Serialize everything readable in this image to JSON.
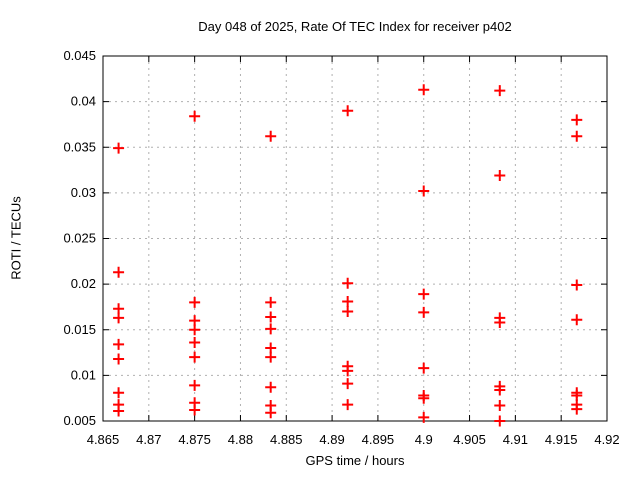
{
  "chart_data": {
    "type": "scatter",
    "title": "Day 048 of 2025, Rate Of TEC Index for receiver p402",
    "xlabel": "GPS time / hours",
    "ylabel": "ROTI / TECUs",
    "xlim": [
      4.865,
      4.92
    ],
    "ylim": [
      0.005,
      0.045
    ],
    "xticks": [
      4.865,
      4.87,
      4.875,
      4.88,
      4.885,
      4.89,
      4.895,
      4.9,
      4.905,
      4.91,
      4.915,
      4.92
    ],
    "xtick_labels": [
      "4.865",
      "4.87",
      "4.875",
      "4.88",
      "4.885",
      "4.89",
      "4.895",
      "4.9",
      "4.905",
      "4.91",
      "4.915",
      "4.92"
    ],
    "yticks": [
      0.005,
      0.01,
      0.015,
      0.02,
      0.025,
      0.03,
      0.035,
      0.04,
      0.045
    ],
    "ytick_labels": [
      "0.005",
      "0.01",
      "0.015",
      "0.02",
      "0.025",
      "0.03",
      "0.035",
      "0.04",
      "0.045"
    ],
    "grid": true,
    "legend_position": "none",
    "marker": {
      "shape": "plus",
      "size": 11,
      "stroke_width": 2
    },
    "colors": {
      "marker": "#ff0000",
      "grid": "#b0b0b0",
      "axis": "#000000",
      "background": "#ffffff"
    },
    "series": [
      {
        "name": "ROTI",
        "points": [
          [
            4.8667,
            0.0349
          ],
          [
            4.8667,
            0.0213
          ],
          [
            4.8667,
            0.0173
          ],
          [
            4.8667,
            0.0163
          ],
          [
            4.8667,
            0.0134
          ],
          [
            4.8667,
            0.0118
          ],
          [
            4.8667,
            0.0081
          ],
          [
            4.8667,
            0.0068
          ],
          [
            4.8667,
            0.0061
          ],
          [
            4.875,
            0.0384
          ],
          [
            4.875,
            0.018
          ],
          [
            4.875,
            0.016
          ],
          [
            4.875,
            0.015
          ],
          [
            4.875,
            0.0136
          ],
          [
            4.875,
            0.012
          ],
          [
            4.875,
            0.0089
          ],
          [
            4.875,
            0.007
          ],
          [
            4.875,
            0.0062
          ],
          [
            4.8833,
            0.0362
          ],
          [
            4.8833,
            0.018
          ],
          [
            4.8833,
            0.0164
          ],
          [
            4.8833,
            0.0151
          ],
          [
            4.8833,
            0.013
          ],
          [
            4.8833,
            0.012
          ],
          [
            4.8833,
            0.0087
          ],
          [
            4.8833,
            0.0067
          ],
          [
            4.8833,
            0.0059
          ],
          [
            4.8917,
            0.039
          ],
          [
            4.8917,
            0.0201
          ],
          [
            4.8917,
            0.0181
          ],
          [
            4.8917,
            0.017
          ],
          [
            4.8917,
            0.011
          ],
          [
            4.8917,
            0.0105
          ],
          [
            4.8917,
            0.0091
          ],
          [
            4.8917,
            0.0068
          ],
          [
            4.9,
            0.0413
          ],
          [
            4.9,
            0.0302
          ],
          [
            4.9,
            0.0189
          ],
          [
            4.9,
            0.0169
          ],
          [
            4.9,
            0.0108
          ],
          [
            4.9,
            0.0078
          ],
          [
            4.9,
            0.0075
          ],
          [
            4.9,
            0.0054
          ],
          [
            4.9083,
            0.0412
          ],
          [
            4.9083,
            0.0319
          ],
          [
            4.9083,
            0.0163
          ],
          [
            4.9083,
            0.0158
          ],
          [
            4.9083,
            0.0088
          ],
          [
            4.9083,
            0.0084
          ],
          [
            4.9083,
            0.0067
          ],
          [
            4.9083,
            0.005
          ],
          [
            4.9167,
            0.038
          ],
          [
            4.9167,
            0.0362
          ],
          [
            4.9167,
            0.0199
          ],
          [
            4.9167,
            0.0161
          ],
          [
            4.9167,
            0.0081
          ],
          [
            4.9167,
            0.0078
          ],
          [
            4.9167,
            0.0068
          ],
          [
            4.9167,
            0.0063
          ]
        ]
      }
    ]
  }
}
